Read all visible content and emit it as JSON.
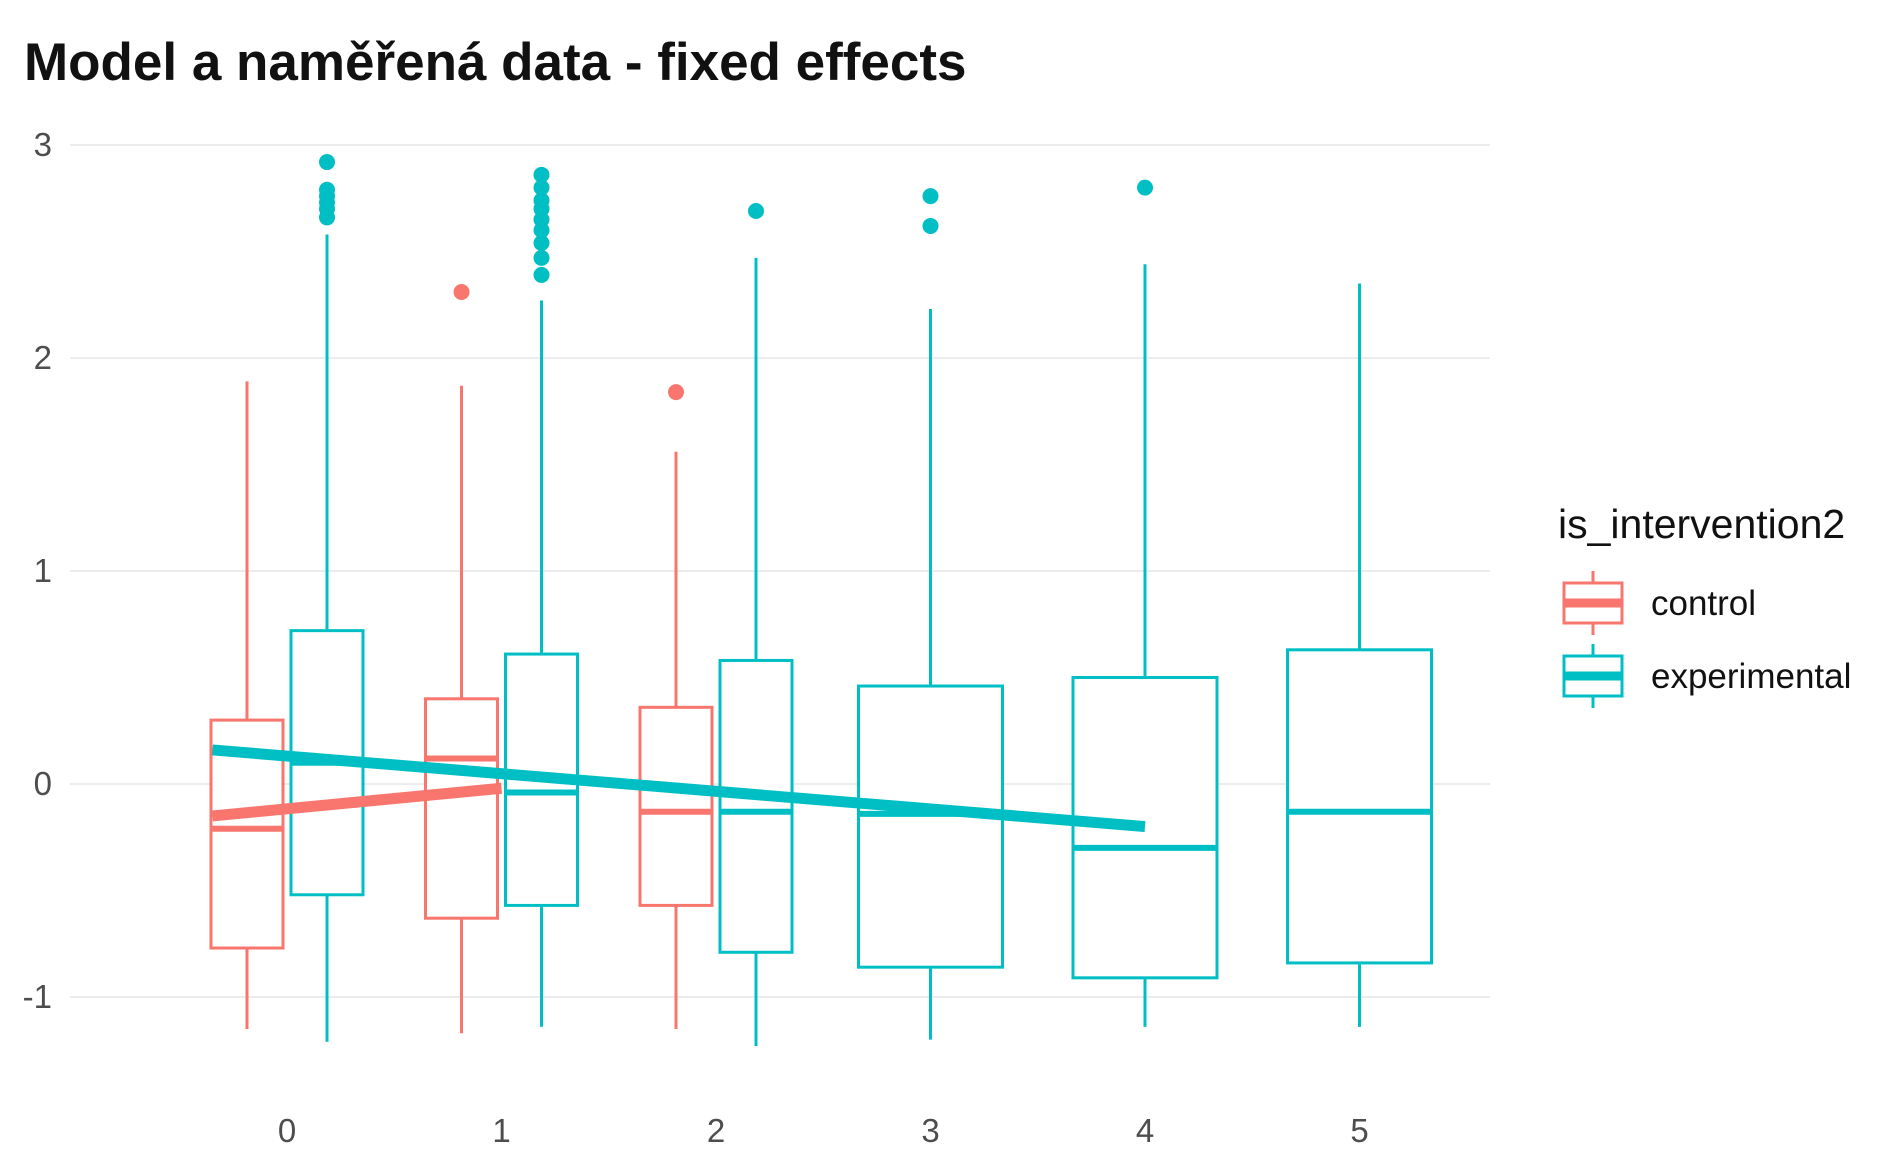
{
  "chart_data": {
    "type": "boxplot",
    "title": "Model a naměřená data - fixed effects",
    "xlabel": "",
    "ylabel": "",
    "categories": [
      "0",
      "1",
      "2",
      "3",
      "4",
      "5"
    ],
    "y_ticks": [
      "-1",
      "0",
      "1",
      "2",
      "3"
    ],
    "ylim": [
      -1.3,
      3.1
    ],
    "grid": true,
    "legend": {
      "title": "is_intervention2",
      "position": "right",
      "entries": [
        "control",
        "experimental"
      ]
    },
    "colors": {
      "control": "#F8766D",
      "experimental": "#00BFC4"
    },
    "series": [
      {
        "name": "control",
        "boxes": [
          {
            "x": 0,
            "min": -1.15,
            "q1": -0.77,
            "median": -0.21,
            "q3": 0.3,
            "max": 1.89,
            "outliers": []
          },
          {
            "x": 1,
            "min": -1.17,
            "q1": -0.63,
            "median": 0.12,
            "q3": 0.4,
            "max": 1.87,
            "outliers": [
              2.31
            ]
          },
          {
            "x": 2,
            "min": -1.15,
            "q1": -0.57,
            "median": -0.13,
            "q3": 0.36,
            "max": 1.56,
            "outliers": [
              1.84
            ]
          }
        ],
        "fit_line": [
          {
            "x": -1,
            "y": -0.15
          },
          {
            "x": 1,
            "y": -0.02
          }
        ]
      },
      {
        "name": "experimental",
        "boxes": [
          {
            "x": 0,
            "min": -1.21,
            "q1": -0.52,
            "median": 0.1,
            "q3": 0.72,
            "max": 2.58,
            "outliers": [
              2.66,
              2.7,
              2.73,
              2.76,
              2.79,
              2.92
            ]
          },
          {
            "x": 1,
            "min": -1.14,
            "q1": -0.57,
            "median": -0.04,
            "q3": 0.61,
            "max": 2.27,
            "outliers": [
              2.39,
              2.47,
              2.54,
              2.6,
              2.65,
              2.7,
              2.74,
              2.8,
              2.86
            ]
          },
          {
            "x": 2,
            "min": -1.23,
            "q1": -0.79,
            "median": -0.13,
            "q3": 0.58,
            "max": 2.47,
            "outliers": [
              2.69
            ]
          },
          {
            "x": 3,
            "min": -1.2,
            "q1": -0.86,
            "median": -0.14,
            "q3": 0.46,
            "max": 2.23,
            "outliers": [
              2.62,
              2.76
            ]
          },
          {
            "x": 4,
            "min": -1.14,
            "q1": -0.91,
            "median": -0.3,
            "q3": 0.5,
            "max": 2.44,
            "outliers": [
              2.8
            ]
          },
          {
            "x": 5,
            "min": -1.14,
            "q1": -0.84,
            "median": -0.13,
            "q3": 0.63,
            "max": 2.35,
            "outliers": []
          }
        ],
        "fit_line": [
          {
            "x": -1,
            "y": 0.16
          },
          {
            "x": 4,
            "y": -0.2
          }
        ]
      }
    ]
  }
}
